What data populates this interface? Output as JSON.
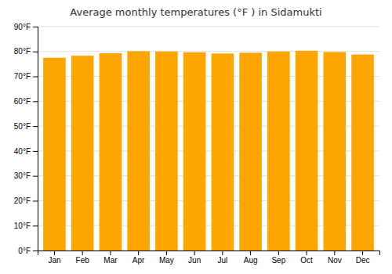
{
  "chart_data": {
    "type": "bar",
    "title": "Average monthly temperatures (°F ) in Sidamukti",
    "categories": [
      "Jan",
      "Feb",
      "Mar",
      "Apr",
      "May",
      "Jun",
      "Jul",
      "Aug",
      "Sep",
      "Oct",
      "Nov",
      "Dec"
    ],
    "values": [
      77.5,
      78.3,
      79.3,
      80.1,
      80.0,
      79.7,
      79.2,
      79.5,
      80.0,
      80.3,
      79.8,
      78.8
    ],
    "color": "#FFA500",
    "ylim": [
      0,
      90
    ],
    "yticks": [
      {
        "value": 0,
        "label": "0°F"
      },
      {
        "value": 10,
        "label": "10°F"
      },
      {
        "value": 20,
        "label": "20°F"
      },
      {
        "value": 30,
        "label": "30°F"
      },
      {
        "value": 40,
        "label": "40°F"
      },
      {
        "value": 50,
        "label": "50°F"
      },
      {
        "value": 60,
        "label": "60°F"
      },
      {
        "value": 70,
        "label": "70°F"
      },
      {
        "value": 80,
        "label": "80°F"
      },
      {
        "value": 90,
        "label": "90°F"
      }
    ],
    "grid": true
  }
}
